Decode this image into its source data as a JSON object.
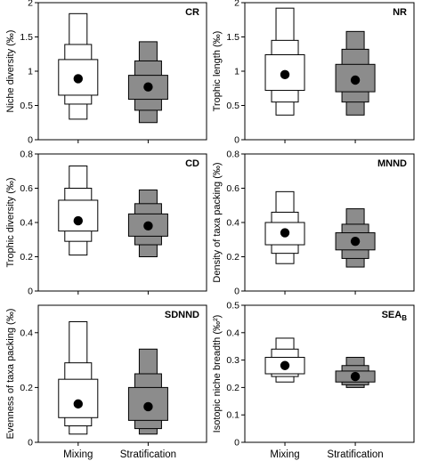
{
  "x_categories": [
    "Mixing",
    "Stratification"
  ],
  "colors": {
    "mixing": "#ffffff",
    "stratification": "#8c8c8c",
    "stroke": "#000000",
    "point": "#000000"
  },
  "chart_data": [
    {
      "type": "box-density",
      "label": "CR",
      "ylabel": "Niche diversity (‰)",
      "ylim": [
        0,
        2
      ],
      "yticks": [
        "0",
        "0.5",
        "1",
        "1.5",
        "2"
      ],
      "ytick_values": [
        0,
        0.5,
        1,
        1.5,
        2
      ],
      "series": [
        {
          "category": "Mixing",
          "mean": 0.89,
          "bands": [
            [
              0.3,
              1.84
            ],
            [
              0.52,
              1.39
            ],
            [
              0.65,
              1.17
            ]
          ]
        },
        {
          "category": "Stratification",
          "mean": 0.77,
          "bands": [
            [
              0.25,
              1.43
            ],
            [
              0.43,
              1.15
            ],
            [
              0.59,
              0.94
            ]
          ]
        }
      ]
    },
    {
      "type": "box-density",
      "label": "NR",
      "ylabel": "Trophic length (‰)",
      "ylim": [
        0,
        2
      ],
      "yticks": [
        "0",
        "0.5",
        "1",
        "1.5",
        "2"
      ],
      "ytick_values": [
        0,
        0.5,
        1,
        1.5,
        2
      ],
      "series": [
        {
          "category": "Mixing",
          "mean": 0.95,
          "bands": [
            [
              0.36,
              1.92
            ],
            [
              0.55,
              1.45
            ],
            [
              0.72,
              1.24
            ]
          ]
        },
        {
          "category": "Stratification",
          "mean": 0.87,
          "bands": [
            [
              0.36,
              1.58
            ],
            [
              0.55,
              1.32
            ],
            [
              0.7,
              1.1
            ]
          ]
        }
      ]
    },
    {
      "type": "box-density",
      "label": "CD",
      "ylabel": "Trophic diversity (‰)",
      "ylim": [
        0,
        0.8
      ],
      "yticks": [
        "0",
        "0.2",
        "0.4",
        "0.6",
        "0.8"
      ],
      "ytick_values": [
        0,
        0.2,
        0.4,
        0.6,
        0.8
      ],
      "series": [
        {
          "category": "Mixing",
          "mean": 0.41,
          "bands": [
            [
              0.21,
              0.73
            ],
            [
              0.29,
              0.6
            ],
            [
              0.35,
              0.53
            ]
          ]
        },
        {
          "category": "Stratification",
          "mean": 0.38,
          "bands": [
            [
              0.2,
              0.59
            ],
            [
              0.27,
              0.51
            ],
            [
              0.32,
              0.45
            ]
          ]
        }
      ]
    },
    {
      "type": "box-density",
      "label": "MNND",
      "ylabel": "Density of taxa packing (‰)",
      "ylim": [
        0,
        0.8
      ],
      "yticks": [
        "0",
        "0.2",
        "0.4",
        "0.6",
        "0.8"
      ],
      "ytick_values": [
        0,
        0.2,
        0.4,
        0.6,
        0.8
      ],
      "series": [
        {
          "category": "Mixing",
          "mean": 0.34,
          "bands": [
            [
              0.16,
              0.58
            ],
            [
              0.22,
              0.46
            ],
            [
              0.27,
              0.4
            ]
          ]
        },
        {
          "category": "Stratification",
          "mean": 0.29,
          "bands": [
            [
              0.14,
              0.48
            ],
            [
              0.19,
              0.39
            ],
            [
              0.24,
              0.34
            ]
          ]
        }
      ]
    },
    {
      "type": "box-density",
      "label": "SDNND",
      "ylabel": "Evenness of taxa packing (‰)",
      "ylim": [
        0,
        0.5
      ],
      "yticks": [
        "0",
        "0.2",
        "0.4"
      ],
      "ytick_values": [
        0,
        0.2,
        0.4
      ],
      "series": [
        {
          "category": "Mixing",
          "mean": 0.14,
          "bands": [
            [
              0.03,
              0.44
            ],
            [
              0.06,
              0.29
            ],
            [
              0.09,
              0.23
            ]
          ]
        },
        {
          "category": "Stratification",
          "mean": 0.13,
          "bands": [
            [
              0.03,
              0.34
            ],
            [
              0.05,
              0.25
            ],
            [
              0.08,
              0.2
            ]
          ]
        }
      ]
    },
    {
      "type": "box-density",
      "label": "SEA",
      "label_sub": "B",
      "ylabel": "Isotopic niche breadth (‰²)",
      "ylim": [
        0,
        0.5
      ],
      "yticks": [
        "0",
        "0.1",
        "0.2",
        "0.3",
        "0.4",
        "0.5"
      ],
      "ytick_values": [
        0,
        0.1,
        0.2,
        0.3,
        0.4,
        0.5
      ],
      "series": [
        {
          "category": "Mixing",
          "mean": 0.28,
          "bands": [
            [
              0.22,
              0.38
            ],
            [
              0.24,
              0.34
            ],
            [
              0.25,
              0.31
            ]
          ]
        },
        {
          "category": "Stratification",
          "mean": 0.24,
          "bands": [
            [
              0.2,
              0.31
            ],
            [
              0.21,
              0.28
            ],
            [
              0.22,
              0.26
            ]
          ]
        }
      ]
    }
  ]
}
